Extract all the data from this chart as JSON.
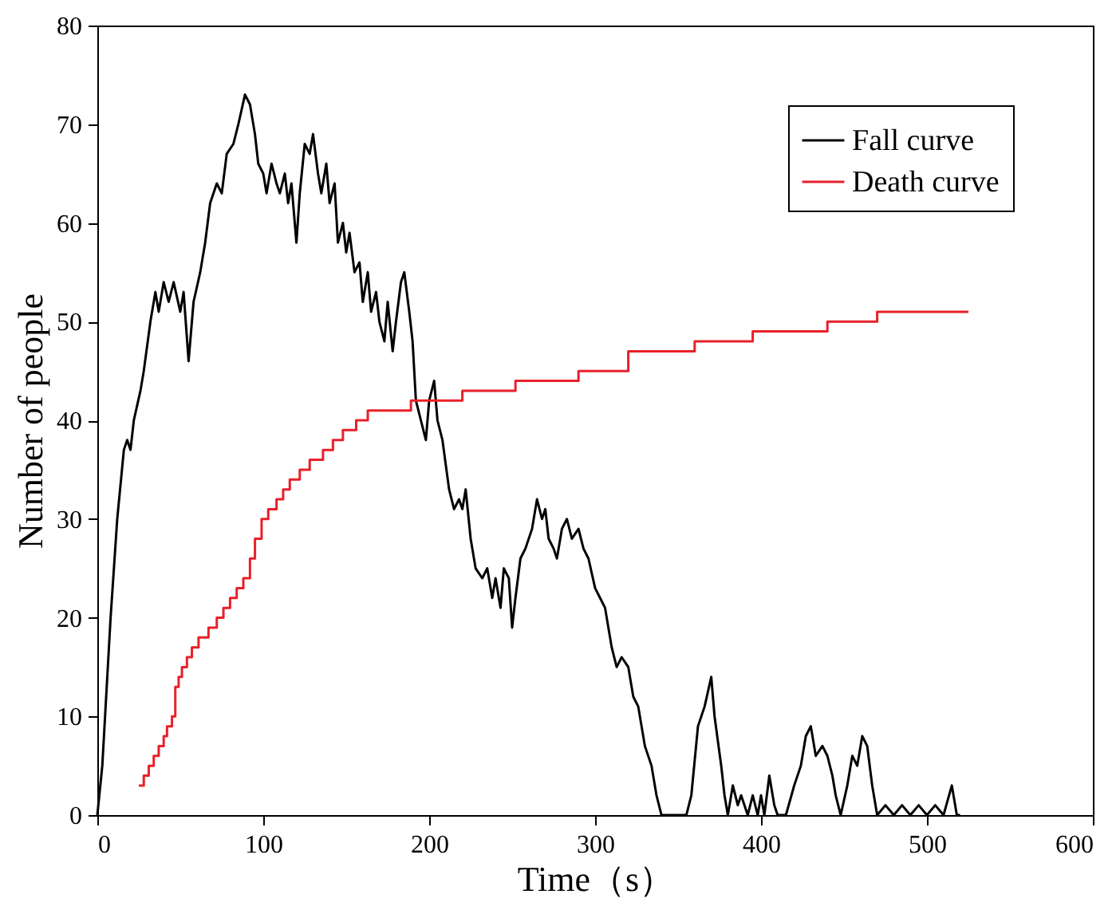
{
  "chart_data": {
    "type": "line",
    "xlabel": "Time（s）",
    "ylabel": "Number of people",
    "xlim": [
      0,
      600
    ],
    "ylim": [
      0,
      80
    ],
    "xticks": [
      0,
      100,
      200,
      300,
      400,
      500,
      600
    ],
    "yticks": [
      0,
      10,
      20,
      30,
      40,
      50,
      60,
      70,
      80
    ],
    "grid": false,
    "legend": "top right",
    "marker": "none",
    "line_style": "solid",
    "series": [
      {
        "name": "Fall curve",
        "color": "#000000",
        "x": [
          0,
          3,
          8,
          12,
          16,
          18,
          20,
          22,
          26,
          28,
          32,
          35,
          37,
          40,
          43,
          46,
          50,
          52,
          55,
          58,
          62,
          65,
          68,
          72,
          75,
          78,
          82,
          85,
          89,
          92,
          95,
          97,
          100,
          102,
          105,
          108,
          110,
          113,
          115,
          117,
          120,
          122,
          125,
          128,
          130,
          133,
          135,
          138,
          140,
          143,
          145,
          148,
          150,
          152,
          155,
          158,
          160,
          163,
          165,
          168,
          170,
          173,
          175,
          178,
          180,
          183,
          185,
          188,
          190,
          192,
          195,
          198,
          200,
          203,
          205,
          208,
          212,
          215,
          218,
          220,
          222,
          225,
          228,
          232,
          235,
          238,
          240,
          243,
          245,
          248,
          250,
          252,
          255,
          258,
          262,
          265,
          268,
          270,
          272,
          275,
          277,
          280,
          283,
          286,
          290,
          293,
          296,
          300,
          303,
          306,
          310,
          313,
          316,
          320,
          323,
          326,
          330,
          334,
          337,
          340,
          345,
          350,
          355,
          358,
          362,
          366,
          370,
          372,
          376,
          378,
          380,
          383,
          386,
          388,
          392,
          395,
          398,
          400,
          402,
          405,
          408,
          410,
          415,
          420,
          424,
          427,
          430,
          433,
          437,
          440,
          443,
          445,
          448,
          452,
          455,
          458,
          461,
          464,
          467,
          470,
          475,
          480,
          485,
          490,
          495,
          500,
          505,
          510,
          515,
          518,
          520
        ],
        "values": [
          0,
          5,
          20,
          30,
          37,
          38,
          37,
          40,
          43,
          45,
          50,
          53,
          51,
          54,
          52,
          54,
          51,
          53,
          46,
          52,
          55,
          58,
          62,
          64,
          63,
          67,
          68,
          70,
          73,
          72,
          69,
          66,
          65,
          63,
          66,
          64,
          63,
          65,
          62,
          64,
          58,
          63,
          68,
          67,
          69,
          65,
          63,
          66,
          62,
          64,
          58,
          60,
          57,
          59,
          55,
          56,
          52,
          55,
          51,
          53,
          50,
          48,
          52,
          47,
          50,
          54,
          55,
          51,
          48,
          42,
          40,
          38,
          42,
          44,
          40,
          38,
          33,
          31,
          32,
          31,
          33,
          28,
          25,
          24,
          25,
          22,
          24,
          21,
          25,
          24,
          19,
          22,
          26,
          27,
          29,
          32,
          30,
          31,
          28,
          27,
          26,
          29,
          30,
          28,
          29,
          27,
          26,
          23,
          22,
          21,
          17,
          15,
          16,
          15,
          12,
          11,
          7,
          5,
          2,
          0,
          0,
          0,
          0,
          2,
          9,
          11,
          14,
          10,
          5,
          2,
          0,
          3,
          1,
          2,
          0,
          2,
          0,
          2,
          0,
          4,
          1,
          0,
          0,
          3,
          5,
          8,
          9,
          6,
          7,
          6,
          4,
          2,
          0,
          3,
          6,
          5,
          8,
          7,
          3,
          0,
          1,
          0,
          1,
          0,
          1,
          0,
          1,
          0,
          3,
          0,
          0
        ]
      },
      {
        "name": "Death curve",
        "type": "step",
        "color": "#e8202a",
        "x": [
          25,
          28,
          31,
          34,
          37,
          40,
          42,
          45,
          47,
          49,
          51,
          54,
          57,
          61,
          67,
          72,
          76,
          80,
          84,
          88,
          92,
          95,
          99,
          103,
          108,
          112,
          116,
          122,
          128,
          136,
          142,
          148,
          156,
          163,
          167,
          189,
          220,
          252,
          290,
          320,
          360,
          395,
          440,
          470,
          525
        ],
        "values": [
          3,
          4,
          5,
          6,
          7,
          8,
          9,
          10,
          13,
          14,
          15,
          16,
          17,
          18,
          19,
          20,
          21,
          22,
          23,
          24,
          26,
          28,
          30,
          31,
          32,
          33,
          34,
          35,
          36,
          37,
          38,
          39,
          40,
          41,
          41,
          42,
          43,
          44,
          45,
          47,
          48,
          49,
          50,
          51,
          51
        ]
      }
    ]
  }
}
